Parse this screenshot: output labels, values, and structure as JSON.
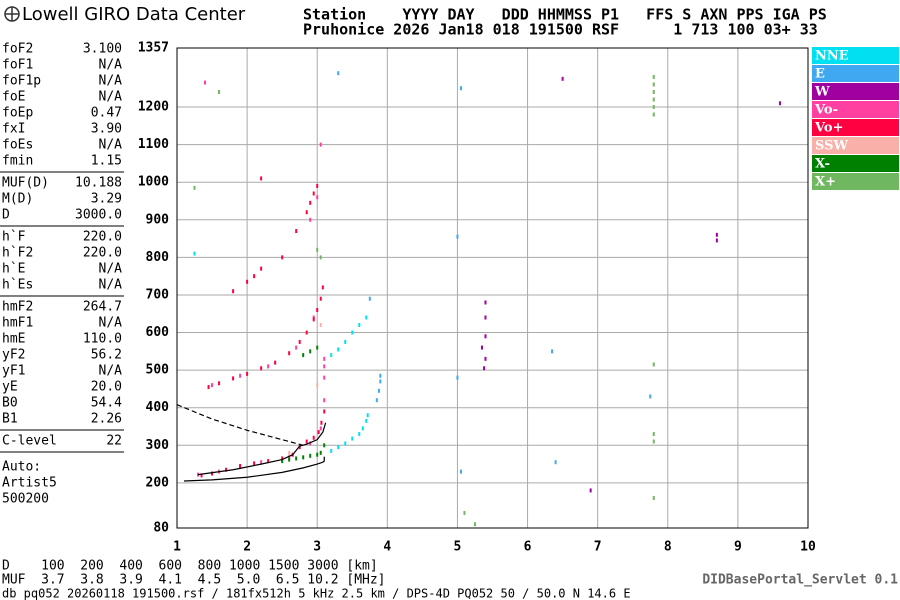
{
  "header": {
    "logo": "Lowell GIRO Data Center",
    "line1": "Station    YYYY DAY   DDD HHMMSS P1   FFS S AXN PPS IGA PS",
    "line2": "Pruhonice 2026 Jan18 018 191500 RSF      1 713 100 03+ 33"
  },
  "parameters": [
    [
      {
        "name": "foF2",
        "value": "3.100"
      },
      {
        "name": "foF1",
        "value": "N/A"
      },
      {
        "name": "foF1p",
        "value": "N/A"
      },
      {
        "name": "foE",
        "value": "N/A"
      },
      {
        "name": "foEp",
        "value": "0.47"
      },
      {
        "name": "fxI",
        "value": "3.90"
      },
      {
        "name": "foEs",
        "value": "N/A"
      },
      {
        "name": "fmin",
        "value": "1.15"
      }
    ],
    [
      {
        "name": "MUF(D)",
        "value": "10.188"
      },
      {
        "name": "M(D)",
        "value": "3.29"
      },
      {
        "name": "D",
        "value": "3000.0"
      }
    ],
    [
      {
        "name": "h`F",
        "value": "220.0"
      },
      {
        "name": "h`F2",
        "value": "220.0"
      },
      {
        "name": "h`E",
        "value": "N/A"
      },
      {
        "name": "h`Es",
        "value": "N/A"
      }
    ],
    [
      {
        "name": "hmF2",
        "value": "264.7"
      },
      {
        "name": "hmF1",
        "value": "N/A"
      },
      {
        "name": "hmE",
        "value": "110.0"
      },
      {
        "name": "yF2",
        "value": "56.2"
      },
      {
        "name": "yF1",
        "value": "N/A"
      },
      {
        "name": "yE",
        "value": "20.0"
      },
      {
        "name": "B0",
        "value": "54.4"
      },
      {
        "name": "B1",
        "value": "2.26"
      }
    ],
    [
      {
        "name": "C-level",
        "value": "22"
      }
    ]
  ],
  "notes": [
    "Auto:",
    "Artist5",
    "500200"
  ],
  "chart_data": {
    "type": "scatter",
    "xlim": [
      1,
      10
    ],
    "xticks": [
      1,
      2,
      3,
      4,
      5,
      6,
      7,
      8,
      9,
      10
    ],
    "ylim": [
      80,
      1357
    ],
    "yticks": [
      80,
      200,
      300,
      400,
      500,
      600,
      700,
      800,
      900,
      1000,
      1100,
      1200,
      1357
    ],
    "grid": true,
    "series": [
      {
        "name": "NNE",
        "color": "#00e0f0",
        "x": [
          3.2,
          3.3,
          3.4,
          3.5,
          3.6,
          3.65,
          3.7,
          3.72,
          3.2,
          3.3,
          3.4,
          3.5,
          3.6,
          3.7,
          1.25
        ],
        "y": [
          285,
          295,
          305,
          318,
          330,
          345,
          365,
          380,
          540,
          555,
          575,
          600,
          620,
          640,
          810
        ]
      },
      {
        "name": "E",
        "color": "#40a8f0",
        "x": [
          3.85,
          3.88,
          3.9,
          3.9,
          5.05,
          5.05,
          5.0,
          6.35,
          6.4,
          7.75,
          3.3,
          3.75,
          5.0
        ],
        "y": [
          420,
          445,
          470,
          485,
          230,
          1250,
          480,
          550,
          255,
          430,
          1290,
          690,
          855
        ]
      },
      {
        "name": "W",
        "color": "#a000a0",
        "x": [
          5.4,
          5.4,
          5.4,
          5.4,
          5.38,
          6.9,
          8.7,
          8.7,
          6.5,
          9.6,
          5.35
        ],
        "y": [
          680,
          640,
          590,
          530,
          505,
          180,
          860,
          845,
          1275,
          1210,
          560
        ]
      },
      {
        "name": "Vo-",
        "color": "#ff40a0",
        "x": [
          1.3,
          1.6,
          1.9,
          2.2,
          2.6,
          2.9,
          3.05,
          3.1,
          1.5,
          1.9,
          2.3,
          2.7,
          2.95,
          3.1,
          3.1,
          3.1,
          2.9,
          3.0,
          1.4,
          3.05
        ],
        "y": [
          222,
          230,
          242,
          255,
          268,
          305,
          345,
          420,
          460,
          485,
          510,
          560,
          640,
          480,
          510,
          530,
          900,
          960,
          1265,
          1100
        ]
      },
      {
        "name": "Vo+",
        "color": "#ff0040",
        "x": [
          1.35,
          1.5,
          1.7,
          1.9,
          2.1,
          2.3,
          2.5,
          2.65,
          2.75,
          2.85,
          2.95,
          3.02,
          3.06,
          3.1,
          1.45,
          1.6,
          1.8,
          2.0,
          2.2,
          2.4,
          2.6,
          2.75,
          2.85,
          2.95,
          3.0,
          3.05,
          3.08,
          1.8,
          2.0,
          2.1,
          2.2,
          2.5,
          2.7,
          2.85,
          2.9,
          2.95,
          3.0,
          2.2
        ],
        "y": [
          220,
          225,
          235,
          245,
          252,
          258,
          265,
          275,
          295,
          310,
          320,
          335,
          360,
          390,
          455,
          465,
          478,
          490,
          505,
          520,
          545,
          575,
          600,
          635,
          660,
          690,
          720,
          710,
          735,
          750,
          770,
          800,
          870,
          920,
          945,
          970,
          990,
          1010
        ]
      },
      {
        "name": "SSW",
        "color": "#f8b0a8",
        "x": [
          3.05,
          1.6,
          2.6,
          3.0
        ],
        "y": [
          620,
          1240,
          280,
          460
        ]
      },
      {
        "name": "X-",
        "color": "#008000",
        "x": [
          2.5,
          2.6,
          2.7,
          2.8,
          2.9,
          3.0,
          3.05,
          2.8,
          2.9,
          3.0,
          3.1
        ],
        "y": [
          258,
          262,
          265,
          268,
          272,
          275,
          280,
          540,
          550,
          560,
          300
        ]
      },
      {
        "name": "X+",
        "color": "#70b860",
        "x": [
          7.8,
          7.8,
          7.8,
          7.8,
          7.8,
          7.8,
          7.8,
          7.8,
          7.8,
          3.0,
          3.05,
          1.25,
          1.6,
          5.1,
          5.25,
          7.8
        ],
        "y": [
          1180,
          1200,
          1220,
          1240,
          1260,
          1280,
          330,
          310,
          160,
          820,
          800,
          985,
          1240,
          120,
          90,
          515
        ]
      }
    ],
    "lines": [
      {
        "color": "#000000",
        "dash": false,
        "x": [
          1.1,
          1.5,
          2.0,
          2.5,
          2.8,
          3.0,
          3.08,
          3.1,
          3.1
        ],
        "y": [
          205,
          208,
          215,
          228,
          240,
          250,
          255,
          258,
          270
        ]
      },
      {
        "color": "#000000",
        "dash": false,
        "x": [
          1.3,
          1.8,
          2.2,
          2.5,
          2.65,
          2.75,
          2.85,
          3.0,
          3.08,
          3.12
        ],
        "y": [
          222,
          235,
          250,
          262,
          275,
          298,
          303,
          315,
          335,
          360
        ]
      },
      {
        "color": "#000000",
        "dash": true,
        "x": [
          1.0,
          1.5,
          2.0,
          2.5,
          2.8
        ],
        "y": [
          408,
          370,
          340,
          315,
          300
        ]
      }
    ]
  },
  "footer": {
    "distance": "D    100  200  400  600  800 1000 1500 3000 [km]",
    "muf": "MUF  3.7  3.8  3.9  4.1  4.5  5.0  6.5 10.2 [MHz]",
    "servlet": "DIDBasePortal_Servlet 0.1",
    "source": "db pq052 20260118 191500.rsf / 181fx512h 5 kHz 2.5 km / DPS-4D PQ052 50 / 50.0 N 14.6 E"
  }
}
